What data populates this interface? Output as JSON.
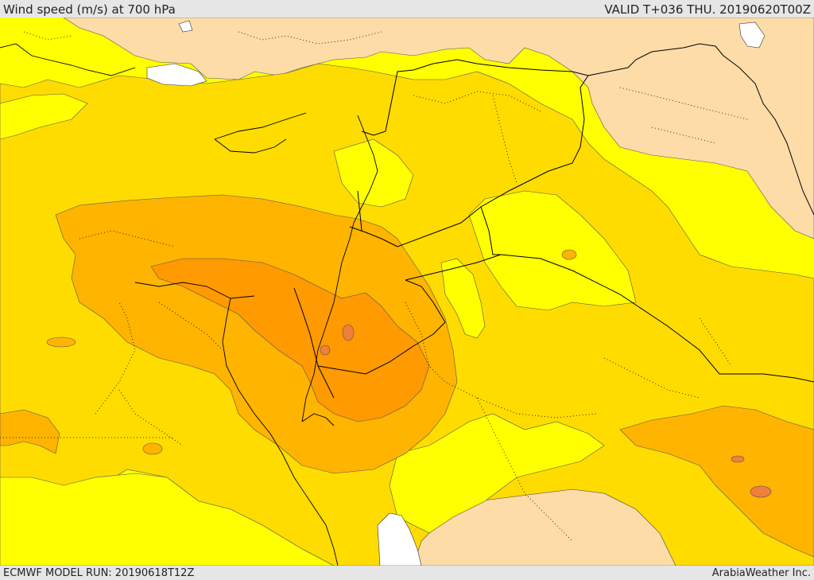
{
  "header": {
    "title": "Wind speed (m/s) at 700 hPa",
    "valid": "VALID T+036 THU. 20190620T00Z"
  },
  "footer": {
    "model_run": "ECMWF MODEL RUN: 20190618T12Z",
    "credit": "ArabiaWeather Inc."
  },
  "colors": {
    "light_tan": "#fddca8",
    "yellow": "#ffff00",
    "gold": "#ffdc00",
    "orange_light": "#ffb400",
    "orange": "#ff9a00",
    "orange_dark": "#f07f3c",
    "water": "#ffffff",
    "border": "#000000"
  }
}
